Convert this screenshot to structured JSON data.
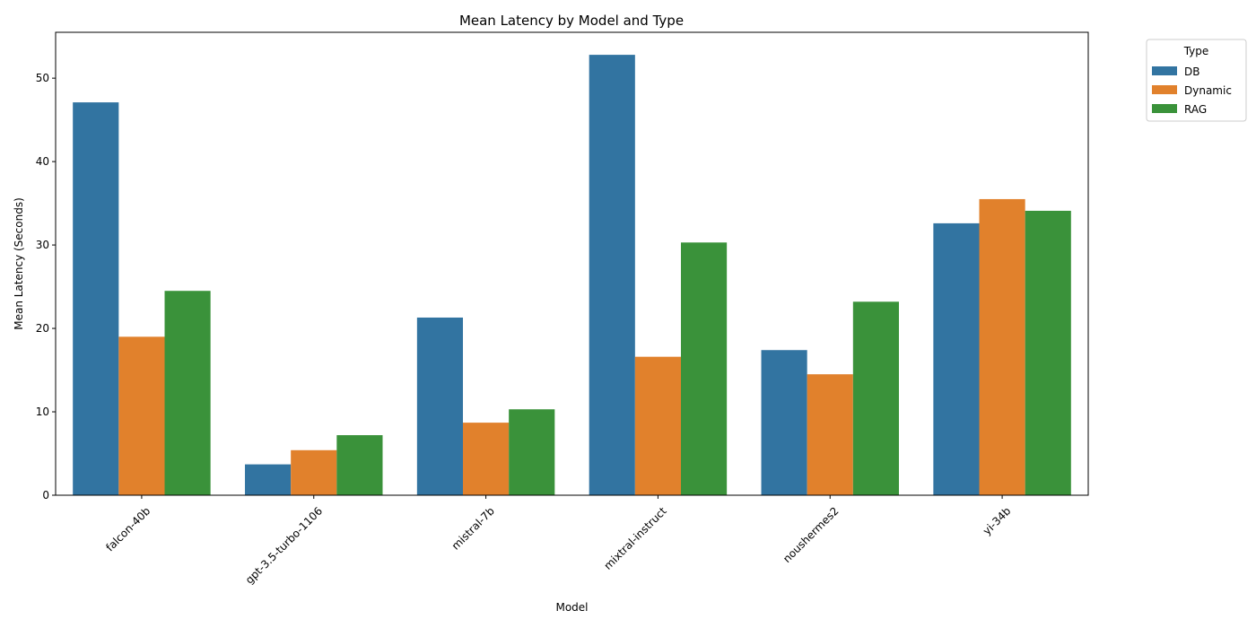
{
  "chart_data": {
    "type": "bar",
    "title": "Mean Latency by Model and Type",
    "xlabel": "Model",
    "ylabel": "Mean Latency (Seconds)",
    "categories": [
      "falcon-40b",
      "gpt-3.5-turbo-1106",
      "mistral-7b",
      "mixtral-instruct",
      "noushermes2",
      "yi-34b"
    ],
    "ylim": [
      0,
      55.5
    ],
    "yticks": [
      0,
      10,
      20,
      30,
      40,
      50
    ],
    "grid": false,
    "legend": {
      "title": "Type",
      "placement": "outside-top-right"
    },
    "series": [
      {
        "name": "DB",
        "color": "#3274a1",
        "values": [
          47.1,
          3.7,
          21.3,
          52.8,
          17.4,
          32.6
        ]
      },
      {
        "name": "Dynamic",
        "color": "#e1812c",
        "values": [
          19.0,
          5.4,
          8.7,
          16.6,
          14.5,
          35.5
        ]
      },
      {
        "name": "RAG",
        "color": "#3a923a",
        "values": [
          24.5,
          7.2,
          10.3,
          30.3,
          23.2,
          34.1
        ]
      }
    ]
  }
}
